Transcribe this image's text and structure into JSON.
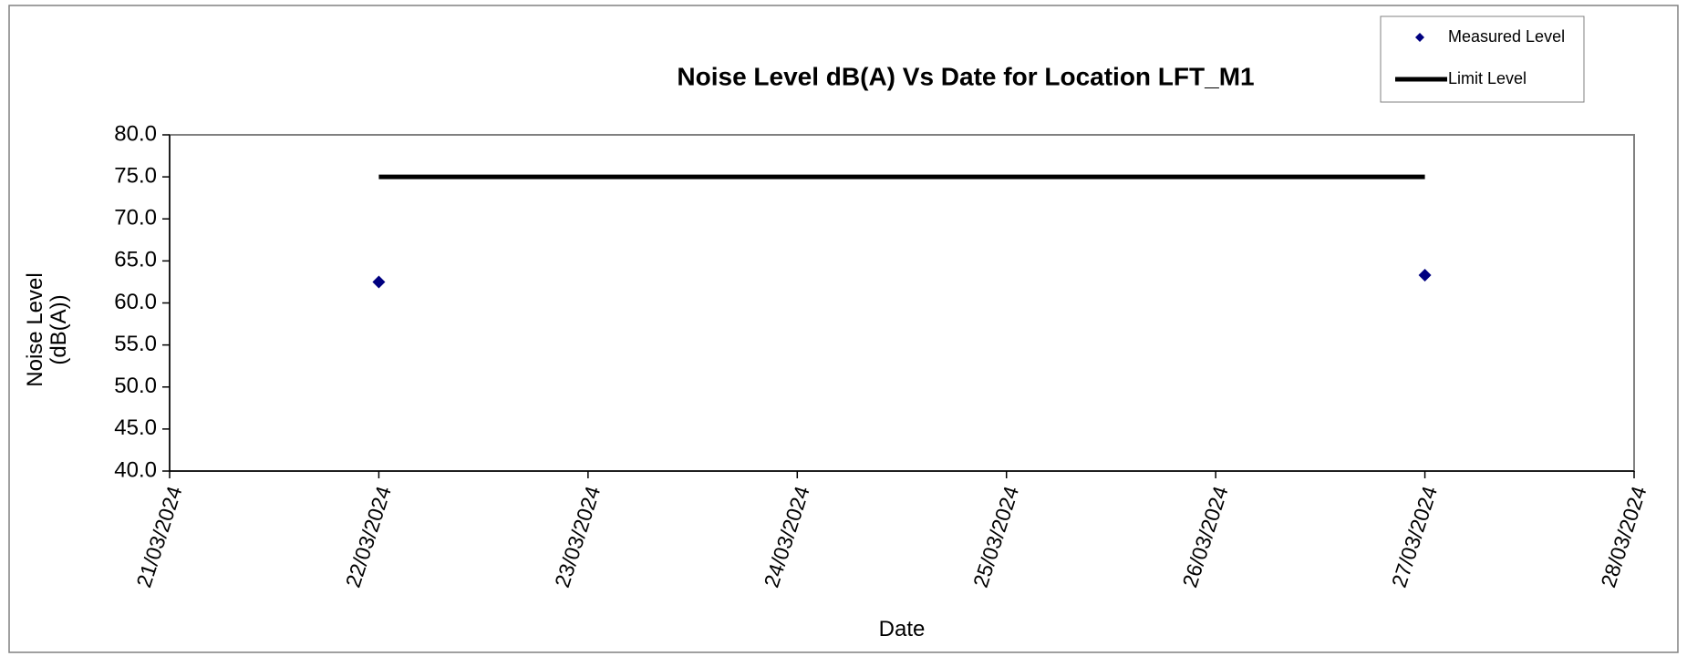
{
  "chart_data": {
    "type": "scatter",
    "title": "Noise Level dB(A) Vs Date for Location LFT_M1",
    "xlabel": "Date",
    "ylabel": [
      "Noise Level",
      "(dB(A))"
    ],
    "xticks": [
      "21/03/2024",
      "22/03/2024",
      "23/03/2024",
      "24/03/2024",
      "25/03/2024",
      "26/03/2024",
      "27/03/2024",
      "28/03/2024"
    ],
    "ylim": [
      40,
      80
    ],
    "yticks": [
      {
        "value": 40,
        "label": "40.0"
      },
      {
        "value": 45,
        "label": "45.0"
      },
      {
        "value": 50,
        "label": "50.0"
      },
      {
        "value": 55,
        "label": "55.0"
      },
      {
        "value": 60,
        "label": "60.0"
      },
      {
        "value": 65,
        "label": "65.0"
      },
      {
        "value": 70,
        "label": "70.0"
      },
      {
        "value": 75,
        "label": "75.0"
      },
      {
        "value": 80,
        "label": "80.0"
      }
    ],
    "series": [
      {
        "name": "Measured Level",
        "color": "#000080",
        "style": "markers",
        "x": [
          "22/03/2024",
          "27/03/2024"
        ],
        "values": [
          62.5,
          63.3
        ]
      },
      {
        "name": "Limit Level",
        "color": "#000000",
        "style": "line",
        "x": [
          "22/03/2024",
          "27/03/2024"
        ],
        "values": [
          75,
          75
        ]
      }
    ],
    "legend": "top-right"
  }
}
